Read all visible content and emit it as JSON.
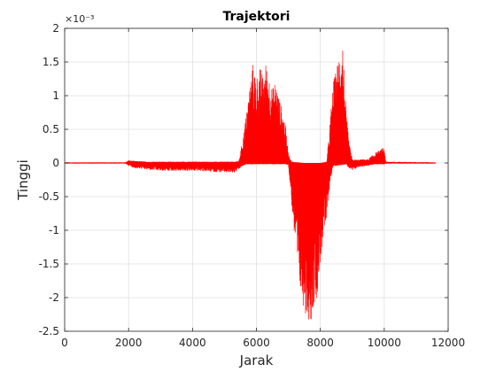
{
  "chart_data": {
    "type": "line",
    "title": "Trajektori",
    "xlabel": "Jarak",
    "ylabel": "Tinggi",
    "y_exponent": "×10⁻³",
    "xlim": [
      0,
      12000
    ],
    "ylim": [
      -2.5,
      2
    ],
    "grid": true,
    "x_ticks": [
      0,
      2000,
      4000,
      6000,
      8000,
      10000,
      12000
    ],
    "x_tick_labels": [
      "0",
      "2000",
      "4000",
      "6000",
      "8000",
      "10000",
      "12000"
    ],
    "y_ticks": [
      2,
      1.5,
      1,
      0.5,
      0,
      -0.5,
      -1,
      -1.5,
      -2,
      -2.5
    ],
    "y_tick_labels": [
      "2",
      "1.5",
      "1",
      "0.5",
      "0",
      "-0.5",
      "-1",
      "-1.5",
      "-2",
      "-2.5"
    ],
    "series": [
      {
        "color": "#ff0000",
        "x_range": [
          0,
          11600
        ],
        "envelope_upper": [
          [
            0,
            0.01
          ],
          [
            1900,
            0.01
          ],
          [
            2000,
            0.04
          ],
          [
            2200,
            0.03
          ],
          [
            2600,
            0.02
          ],
          [
            3000,
            0.02
          ],
          [
            3600,
            0.02
          ],
          [
            4200,
            0.02
          ],
          [
            4800,
            0.02
          ],
          [
            5300,
            0.02
          ],
          [
            5450,
            0.03
          ],
          [
            5550,
            0.3
          ],
          [
            5700,
            0.8
          ],
          [
            5800,
            1.2
          ],
          [
            5900,
            1.5
          ],
          [
            6000,
            1.25
          ],
          [
            6100,
            1.45
          ],
          [
            6200,
            1.3
          ],
          [
            6300,
            1.5
          ],
          [
            6400,
            1.3
          ],
          [
            6500,
            1.1
          ],
          [
            6600,
            1.25
          ],
          [
            6700,
            1.0
          ],
          [
            6800,
            0.8
          ],
          [
            6900,
            0.6
          ],
          [
            7000,
            0.15
          ],
          [
            7100,
            0.02
          ],
          [
            7500,
            0.0
          ],
          [
            8000,
            0.0
          ],
          [
            8200,
            0.02
          ],
          [
            8300,
            0.6
          ],
          [
            8400,
            1.2
          ],
          [
            8500,
            1.4
          ],
          [
            8600,
            1.7
          ],
          [
            8700,
            1.85
          ],
          [
            8750,
            1.3
          ],
          [
            8800,
            0.8
          ],
          [
            8900,
            0.3
          ],
          [
            9000,
            0.05
          ],
          [
            9200,
            0.05
          ],
          [
            9500,
            0.06
          ],
          [
            9700,
            0.15
          ],
          [
            9900,
            0.2
          ],
          [
            10000,
            0.25
          ],
          [
            10050,
            0.02
          ],
          [
            11600,
            0.01
          ]
        ],
        "envelope_lower": [
          [
            0,
            -0.01
          ],
          [
            1900,
            -0.01
          ],
          [
            2000,
            -0.04
          ],
          [
            2200,
            -0.08
          ],
          [
            2600,
            -0.1
          ],
          [
            3000,
            -0.12
          ],
          [
            3600,
            -0.12
          ],
          [
            4200,
            -0.12
          ],
          [
            4800,
            -0.14
          ],
          [
            5300,
            -0.15
          ],
          [
            5450,
            -0.1
          ],
          [
            5550,
            -0.05
          ],
          [
            5700,
            -0.02
          ],
          [
            6000,
            -0.02
          ],
          [
            6500,
            -0.02
          ],
          [
            6900,
            -0.02
          ],
          [
            7000,
            -0.03
          ],
          [
            7100,
            -0.6
          ],
          [
            7200,
            -1.2
          ],
          [
            7300,
            -1.8
          ],
          [
            7400,
            -2.0
          ],
          [
            7500,
            -2.2
          ],
          [
            7600,
            -2.3
          ],
          [
            7700,
            -2.4
          ],
          [
            7800,
            -2.1
          ],
          [
            7900,
            -2.0
          ],
          [
            8000,
            -1.5
          ],
          [
            8100,
            -1.1
          ],
          [
            8200,
            -0.9
          ],
          [
            8300,
            -0.3
          ],
          [
            8400,
            -0.05
          ],
          [
            8800,
            -0.02
          ],
          [
            8900,
            -0.08
          ],
          [
            9000,
            -0.12
          ],
          [
            9200,
            -0.06
          ],
          [
            9500,
            -0.04
          ],
          [
            9700,
            -0.02
          ],
          [
            10000,
            -0.02
          ],
          [
            10050,
            -0.01
          ],
          [
            11600,
            -0.01
          ]
        ]
      }
    ]
  }
}
